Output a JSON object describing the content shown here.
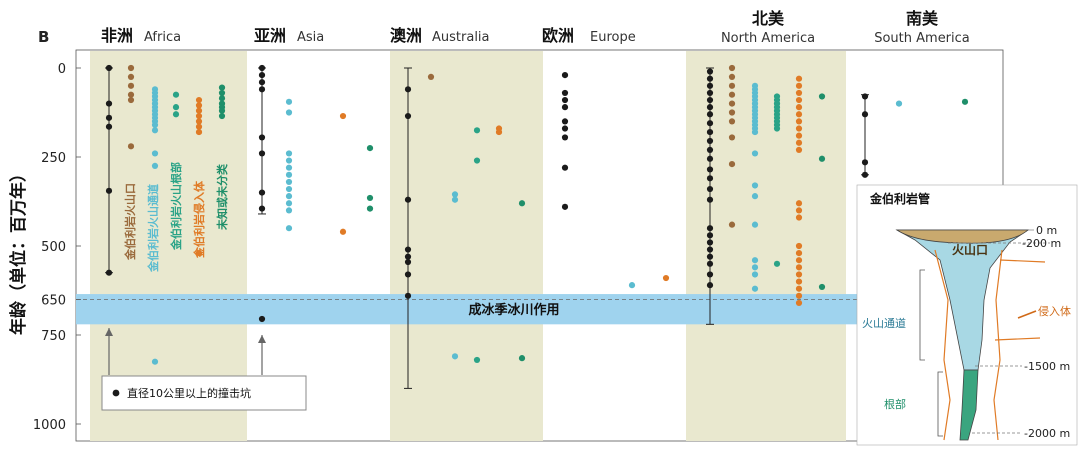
{
  "panel_label": "B",
  "chart_data": {
    "type": "scatter",
    "ylabel": "年龄（单位：百万年）",
    "y_reversed": true,
    "ylim": [
      0,
      1000
    ],
    "yticks": [
      0,
      250,
      500,
      650,
      750,
      1000
    ],
    "regions": [
      {
        "cn": "非洲",
        "en": "Africa",
        "shaded": true
      },
      {
        "cn": "亚洲",
        "en": "Asia",
        "shaded": false
      },
      {
        "cn": "澳洲",
        "en": "Australia",
        "shaded": true
      },
      {
        "cn": "欧洲",
        "en": "Europe",
        "shaded": false
      },
      {
        "cn": "北美",
        "en": "North America",
        "shaded": true
      },
      {
        "cn": "南美",
        "en": "South America",
        "shaded": false
      }
    ],
    "glaciation": {
      "label": "成冰季冰川作用",
      "from": 635,
      "to": 720
    },
    "category_labels": [
      "金伯利岩火山口",
      "金伯利岩火山通道",
      "金伯利岩火山根部",
      "金伯利岩侵入体",
      "未知或未分类"
    ],
    "legend": {
      "label": "直径10公里以上的撞击坑"
    },
    "colors": {
      "impact": "#1b1b1b",
      "crater": "#9a6a3c",
      "diatreme": "#5bbcd0",
      "root": "#2aa387",
      "intrusion": "#e07b26",
      "unknown": "#1f8f6a",
      "band": "#9fd3ee",
      "shade": "#e9e8cf"
    },
    "series": [
      {
        "region": "Africa",
        "category": "impact",
        "points": [
          0,
          100,
          140,
          165,
          345,
          575
        ],
        "range": [
          0,
          575
        ]
      },
      {
        "region": "Africa",
        "category": "crater",
        "points": [
          0,
          25,
          50,
          75,
          90,
          220
        ]
      },
      {
        "region": "Africa",
        "category": "diatreme",
        "points": [
          60,
          70,
          80,
          90,
          100,
          110,
          120,
          130,
          140,
          150,
          160,
          175,
          240,
          275,
          825
        ]
      },
      {
        "region": "Africa",
        "category": "root",
        "points": [
          75,
          110,
          130
        ]
      },
      {
        "region": "Africa",
        "category": "intrusion",
        "points": [
          90,
          105,
          120,
          135,
          150,
          165,
          180,
          520
        ]
      },
      {
        "region": "Africa",
        "category": "unknown",
        "points": [
          55,
          70,
          85,
          100,
          110,
          120,
          135
        ]
      },
      {
        "region": "Asia",
        "category": "impact",
        "points": [
          0,
          20,
          40,
          60,
          195,
          240,
          350,
          395,
          705
        ],
        "range": [
          0,
          410
        ]
      },
      {
        "region": "Asia",
        "category": "diatreme",
        "points": [
          95,
          125,
          240,
          260,
          280,
          300,
          320,
          340,
          360,
          380,
          400,
          450
        ]
      },
      {
        "region": "Asia",
        "category": "intrusion",
        "points": [
          135,
          460
        ]
      },
      {
        "region": "Asia",
        "category": "unknown",
        "points": [
          225,
          365,
          395
        ]
      },
      {
        "region": "Australia",
        "category": "impact",
        "points": [
          60,
          135,
          370,
          510,
          530,
          545,
          580,
          640
        ],
        "range": [
          0,
          900
        ]
      },
      {
        "region": "Australia",
        "category": "crater",
        "points": [
          25
        ]
      },
      {
        "region": "Australia",
        "category": "diatreme",
        "points": [
          355,
          370,
          810
        ]
      },
      {
        "region": "Australia",
        "category": "root",
        "points": [
          175,
          260,
          820
        ]
      },
      {
        "region": "Australia",
        "category": "intrusion",
        "points": [
          170,
          180
        ]
      },
      {
        "region": "Australia",
        "category": "unknown",
        "points": [
          380,
          815
        ]
      },
      {
        "region": "Europe",
        "category": "impact",
        "points": [
          20,
          70,
          90,
          110,
          150,
          170,
          195,
          280,
          390
        ]
      },
      {
        "region": "Europe",
        "category": "diatreme",
        "points": [
          610
        ]
      },
      {
        "region": "Europe",
        "category": "intrusion",
        "points": [
          590
        ]
      },
      {
        "region": "North America",
        "category": "impact",
        "points": [
          10,
          30,
          50,
          70,
          90,
          110,
          130,
          155,
          180,
          205,
          230,
          255,
          285,
          310,
          340,
          370,
          450,
          470,
          490,
          510,
          530,
          550,
          580,
          610
        ],
        "range": [
          0,
          720
        ]
      },
      {
        "region": "North America",
        "category": "crater",
        "points": [
          0,
          25,
          50,
          75,
          100,
          125,
          150,
          195,
          270,
          440
        ]
      },
      {
        "region": "North America",
        "category": "diatreme",
        "points": [
          50,
          60,
          70,
          80,
          90,
          100,
          110,
          120,
          130,
          140,
          150,
          160,
          170,
          180,
          240,
          330,
          360,
          440,
          540,
          560,
          580,
          620
        ]
      },
      {
        "region": "North America",
        "category": "root",
        "points": [
          80,
          90,
          100,
          110,
          120,
          130,
          140,
          150,
          160,
          170,
          550
        ]
      },
      {
        "region": "North America",
        "category": "intrusion",
        "points": [
          30,
          50,
          70,
          90,
          110,
          130,
          150,
          170,
          190,
          210,
          230,
          380,
          400,
          420,
          500,
          520,
          540,
          560,
          580,
          600,
          620,
          640,
          660
        ]
      },
      {
        "region": "North America",
        "category": "unknown",
        "points": [
          80,
          255,
          615
        ]
      },
      {
        "region": "South America",
        "category": "impact",
        "points": [
          80,
          130,
          265,
          300
        ],
        "range": [
          75,
          300
        ]
      },
      {
        "region": "South America",
        "category": "diatreme",
        "points": [
          100
        ]
      },
      {
        "region": "South America",
        "category": "unknown",
        "points": [
          95
        ]
      }
    ]
  },
  "inset": {
    "title": "金伯利岩管",
    "labels": {
      "crater": "火山口",
      "diatreme": "火山通道",
      "root": "根部",
      "intrusion": "侵入体"
    },
    "depths": [
      "0 m",
      "-200 m",
      "-1500 m",
      "-2000 m"
    ]
  }
}
